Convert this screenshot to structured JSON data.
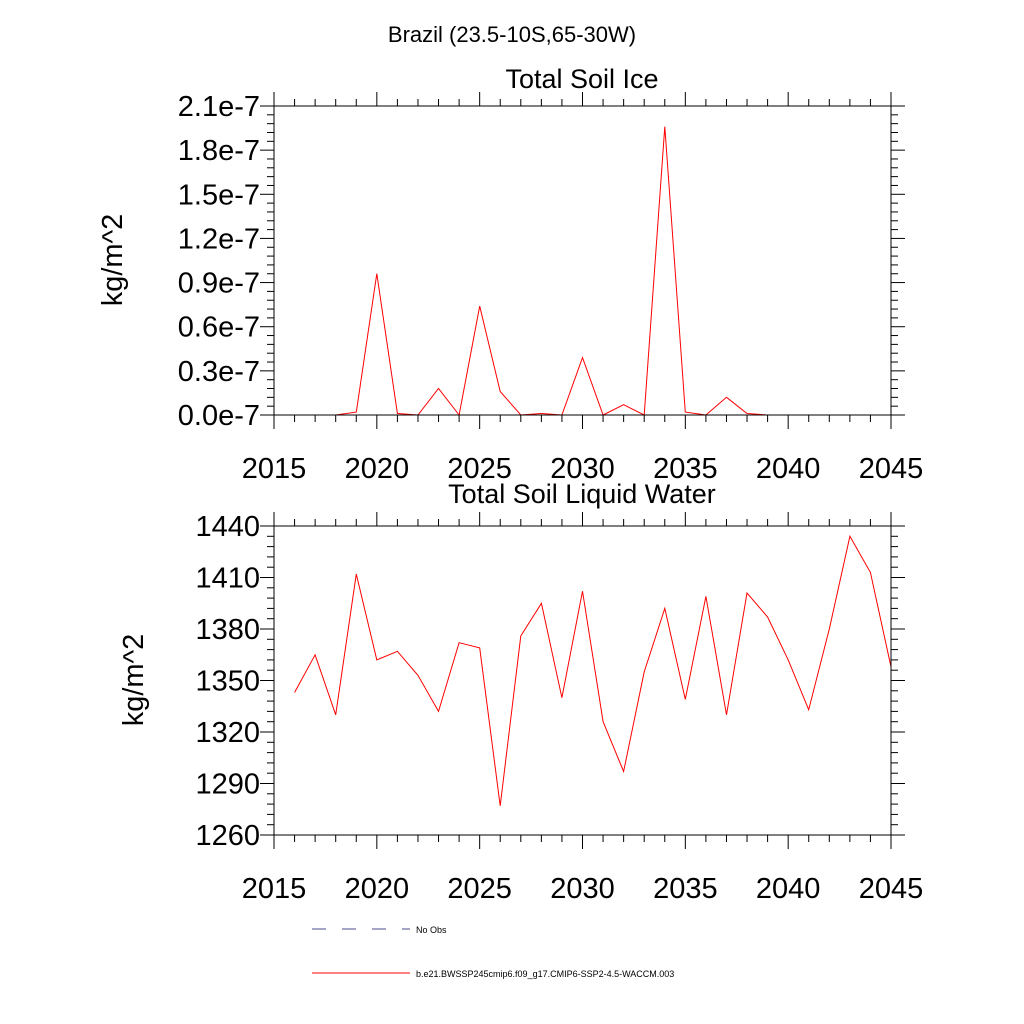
{
  "figure": {
    "title": "Brazil (23.5-10S,65-30W)"
  },
  "chart_data": [
    {
      "type": "line",
      "title": "Total Soil Ice",
      "xlabel": "",
      "ylabel": "kg/m^2",
      "xlim": [
        2015,
        2045
      ],
      "ylim": [
        0.0,
        2.1e-07
      ],
      "xticks": [
        2015,
        2020,
        2025,
        2030,
        2035,
        2040,
        2045
      ],
      "xtick_labels": [
        "2015",
        "2020",
        "2025",
        "2030",
        "2035",
        "2040",
        "2045"
      ],
      "yticks": [
        0.0,
        3e-08,
        6e-08,
        9e-08,
        1.2e-07,
        1.5e-07,
        1.8e-07,
        2.1e-07
      ],
      "ytick_labels": [
        "0.0e-7",
        "0.3e-7",
        "0.6e-7",
        "0.9e-7",
        "1.2e-7",
        "1.5e-7",
        "1.8e-7",
        "2.1e-7"
      ],
      "grid": false,
      "series": [
        {
          "name": "b.e21.BWSSP245cmip6.f09_g17.CMIP6-SSP2-4.5-WACCM.003",
          "color": "#ff0000",
          "x": [
            2016,
            2017,
            2018,
            2019,
            2020,
            2021,
            2022,
            2023,
            2024,
            2025,
            2026,
            2027,
            2028,
            2029,
            2030,
            2031,
            2032,
            2033,
            2034,
            2035,
            2036,
            2037,
            2038,
            2039,
            2040,
            2041,
            2042,
            2043,
            2044,
            2045
          ],
          "y": [
            0.0,
            0.0,
            0.0,
            2e-09,
            9.6e-08,
            1e-09,
            0.0,
            1.8e-08,
            0.0,
            7.4e-08,
            1.6e-08,
            0.0,
            1e-09,
            0.0,
            3.9e-08,
            0.0,
            7e-09,
            0.0,
            1.96e-07,
            2e-09,
            0.0,
            1.2e-08,
            1e-09,
            0.0,
            0.0,
            0.0,
            0.0,
            0.0,
            0.0,
            0.0
          ]
        }
      ]
    },
    {
      "type": "line",
      "title": "Total Soil Liquid Water",
      "xlabel": "",
      "ylabel": "kg/m^2",
      "xlim": [
        2015,
        2045
      ],
      "ylim": [
        1260,
        1440
      ],
      "xticks": [
        2015,
        2020,
        2025,
        2030,
        2035,
        2040,
        2045
      ],
      "xtick_labels": [
        "2015",
        "2020",
        "2025",
        "2030",
        "2035",
        "2040",
        "2045"
      ],
      "yticks": [
        1260,
        1290,
        1320,
        1350,
        1380,
        1410,
        1440
      ],
      "ytick_labels": [
        "1260",
        "1290",
        "1320",
        "1350",
        "1380",
        "1410",
        "1440"
      ],
      "grid": false,
      "series": [
        {
          "name": "b.e21.BWSSP245cmip6.f09_g17.CMIP6-SSP2-4.5-WACCM.003",
          "color": "#ff0000",
          "x": [
            2016,
            2017,
            2018,
            2019,
            2020,
            2021,
            2022,
            2023,
            2024,
            2025,
            2026,
            2027,
            2028,
            2029,
            2030,
            2031,
            2032,
            2033,
            2034,
            2035,
            2036,
            2037,
            2038,
            2039,
            2040,
            2041,
            2042,
            2043,
            2044,
            2045
          ],
          "y": [
            1343,
            1365,
            1330,
            1412,
            1362,
            1367,
            1353,
            1332,
            1372,
            1369,
            1277,
            1376,
            1395,
            1340,
            1402,
            1326,
            1297,
            1355,
            1392,
            1339,
            1399,
            1330,
            1401,
            1387,
            1362,
            1333,
            1380,
            1434,
            1413,
            1358
          ]
        }
      ]
    }
  ],
  "legend": {
    "items": [
      {
        "label": "No Obs",
        "color": "#4b4b8f",
        "style": "dashed"
      },
      {
        "label": "b.e21.BWSSP245cmip6.f09_g17.CMIP6-SSP2-4.5-WACCM.003",
        "color": "#ff0000",
        "style": "solid"
      }
    ]
  }
}
